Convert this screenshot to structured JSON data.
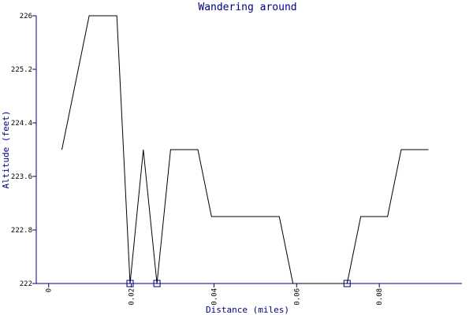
{
  "chart_data": {
    "type": "line",
    "title": "Wandering around",
    "xlabel": "Distance (miles)",
    "ylabel": "Altitude (feet)",
    "xlim": [
      -0.003,
      0.1
    ],
    "ylim": [
      222,
      226
    ],
    "x_ticks": [
      0,
      0.02,
      0.04,
      0.06,
      0.08
    ],
    "x_tick_labels": [
      "0",
      "0.02",
      "0.04",
      "0.06",
      "0.08"
    ],
    "y_ticks": [
      222,
      222.8,
      223.6,
      224.4,
      225.2,
      226
    ],
    "y_tick_labels": [
      "222",
      "222.8",
      "223.6",
      "224.4",
      "225.2",
      "226"
    ],
    "grid": false,
    "series": [
      {
        "color": "#000000",
        "x": [
          0.0032,
          0.0098,
          0.0165,
          0.0197,
          0.0229,
          0.0262,
          0.0295,
          0.0361,
          0.0394,
          0.0558,
          0.0591,
          0.0722,
          0.0755,
          0.082,
          0.0853,
          0.0919
        ],
        "y": [
          224.0,
          226.0,
          226.0,
          222.0,
          224.0,
          222.0,
          224.0,
          224.0,
          223.0,
          223.0,
          222.0,
          222.0,
          223.0,
          223.0,
          224.0,
          224.0
        ]
      }
    ],
    "markers": {
      "shape": "square",
      "color": "#000080",
      "x": [
        0.0197,
        0.0262,
        0.0722
      ],
      "y": [
        222.0,
        222.0,
        222.0
      ]
    }
  }
}
